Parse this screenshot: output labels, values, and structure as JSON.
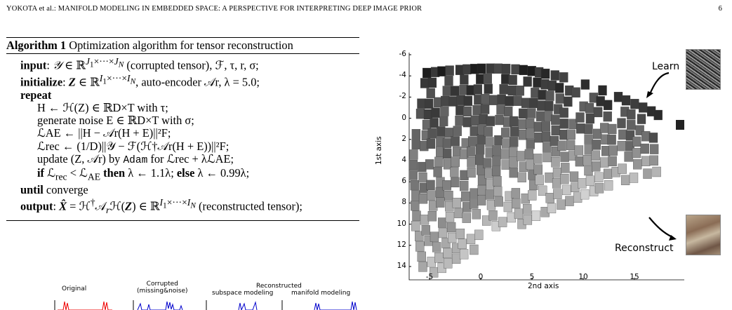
{
  "header": {
    "running_head": "YOKOTA et al.: MANIFOLD MODELING IN EMBEDDED SPACE: A PERSPECTIVE FOR INTERPRETING DEEP IMAGE PRIOR",
    "page_number": "6"
  },
  "algorithm": {
    "label": "Algorithm 1",
    "title": "Optimization algorithm for tensor reconstruction",
    "lines": {
      "input_kw": "input",
      "input_text": "(corrupted tensor), ℱ, τ, r, σ;",
      "initialize_kw": "initialize",
      "initialize_text": "auto-encoder 𝒜r, λ = 5.0;",
      "repeat_kw": "repeat",
      "step_h": "H ← ℋ(Z) ∈ ℝD×T with τ;",
      "step_noise": "generate noise E ∈ ℝD×T with σ;",
      "step_lae": "ℒAE ← ||H − 𝒜r(H + E)||²F;",
      "step_lrec": "ℒrec ← (1/D)||𝒴 − ℱ(ℋ†𝒜r(H + E))||²F;",
      "update_word": "update (Z, 𝒜r) by",
      "adam": "Adam",
      "update_tail": "for ℒrec + λℒAE;",
      "if_kw": "if",
      "then_kw": "then",
      "else_kw": "else",
      "until_kw": "until",
      "until_text": "converge",
      "output_kw": "output",
      "output_text": "(reconstructed tensor);"
    }
  },
  "bottom_figure": {
    "labels": {
      "original": "Original",
      "corrupted": "Corrupted\n(missing&noise)",
      "reconstructed": "Reconstructed",
      "subspace": "subspace modeling",
      "manifold": "manifold modeling"
    }
  },
  "right_figure": {
    "xlabel": "2nd axis",
    "ylabel": "1st axis",
    "xticks": [
      "-5",
      "0",
      "5",
      "10",
      "15"
    ],
    "yticks": [
      "-6",
      "-4",
      "-2",
      "0",
      "2",
      "4",
      "6",
      "8",
      "10",
      "12",
      "14"
    ],
    "learn_label": "Learn",
    "reconstruct_label": "Reconstruct"
  }
}
